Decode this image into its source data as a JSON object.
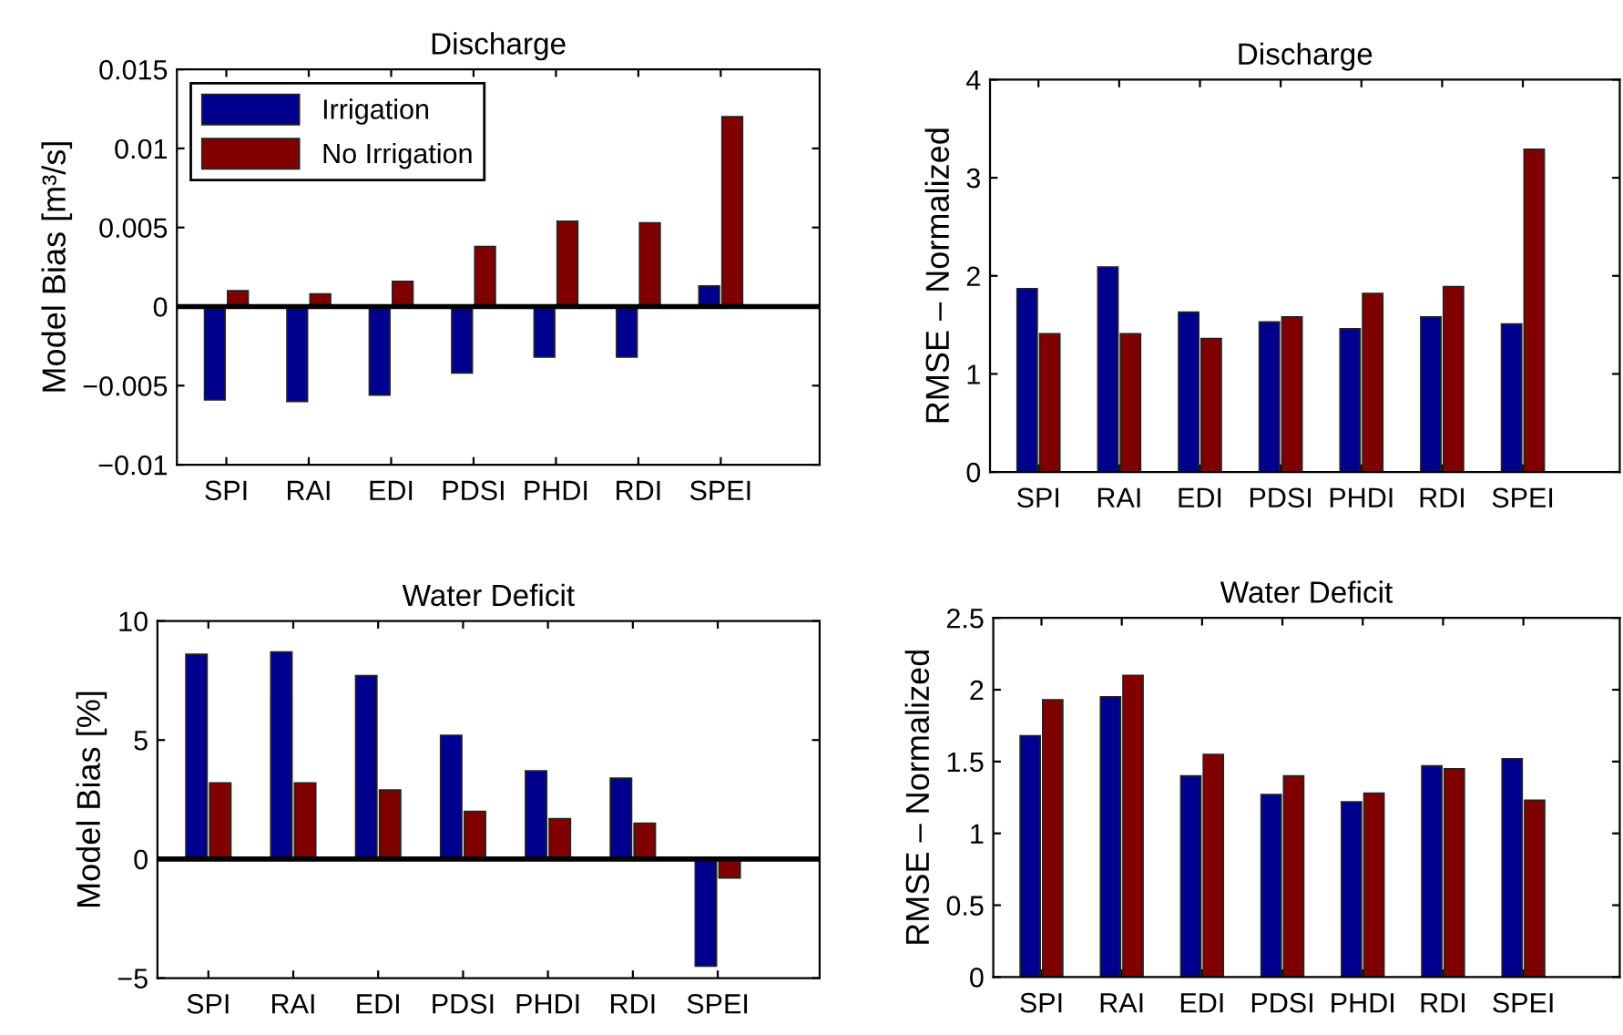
{
  "chart_data": [
    {
      "type": "bar",
      "title": "Discharge",
      "ylabel": "Model Bias [m³/s]",
      "categories": [
        "SPI",
        "RAI",
        "EDI",
        "PDSI",
        "PHDI",
        "RDI",
        "SPEI"
      ],
      "ylim": [
        -0.01,
        0.015
      ],
      "yticks": [
        {
          "value": -0.01,
          "label": "−0.01"
        },
        {
          "value": -0.005,
          "label": "−0.005"
        },
        0,
        0.005,
        0.01,
        0.015
      ],
      "legend": "top left",
      "grid": false,
      "ref_lines": [
        {
          "axis": "y",
          "value": 0,
          "color": "#000000"
        }
      ],
      "series": [
        {
          "name": "Irrigation",
          "color": "#00008f",
          "values": [
            -0.0059,
            -0.006,
            -0.0056,
            -0.0042,
            -0.0032,
            -0.0032,
            0.0013
          ]
        },
        {
          "name": "No Irrigation",
          "color": "#800000",
          "values": [
            0.001,
            0.0008,
            0.0016,
            0.0038,
            0.0054,
            0.0053,
            0.012
          ]
        }
      ]
    },
    {
      "type": "bar",
      "title": "Discharge",
      "ylabel": "RMSE – Normalized",
      "categories": [
        "SPI",
        "RAI",
        "EDI",
        "PDSI",
        "PHDI",
        "RDI",
        "SPEI"
      ],
      "ylim": [
        0,
        4
      ],
      "yticks": [
        0,
        1,
        2,
        3,
        4
      ],
      "grid": false,
      "series": [
        {
          "color": "#00008f",
          "values": [
            1.87,
            2.09,
            1.63,
            1.53,
            1.46,
            1.58,
            1.51
          ]
        },
        {
          "color": "#800000",
          "values": [
            1.41,
            1.41,
            1.36,
            1.58,
            1.82,
            1.89,
            3.29
          ]
        }
      ]
    },
    {
      "type": "bar",
      "title": "Water Deficit",
      "ylabel": "Model Bias [%]",
      "categories": [
        "SPI",
        "RAI",
        "EDI",
        "PDSI",
        "PHDI",
        "RDI",
        "SPEI"
      ],
      "ylim": [
        -5,
        10
      ],
      "yticks": [
        {
          "value": -5,
          "label": "−5"
        },
        0,
        5,
        10
      ],
      "grid": false,
      "ref_lines": [
        {
          "axis": "y",
          "value": 0,
          "color": "#000000"
        }
      ],
      "series": [
        {
          "color": "#00008f",
          "values": [
            8.6,
            8.7,
            7.7,
            5.2,
            3.7,
            3.4,
            -4.5
          ]
        },
        {
          "color": "#800000",
          "values": [
            3.2,
            3.2,
            2.9,
            2.0,
            1.7,
            1.5,
            -0.8
          ]
        }
      ]
    },
    {
      "type": "bar",
      "title": "Water Deficit",
      "ylabel": "RMSE – Normalized",
      "categories": [
        "SPI",
        "RAI",
        "EDI",
        "PDSI",
        "PHDI",
        "RDI",
        "SPEI"
      ],
      "ylim": [
        0,
        2.5
      ],
      "yticks": [
        0,
        0.5,
        1,
        1.5,
        2,
        2.5
      ],
      "grid": false,
      "series": [
        {
          "color": "#00008f",
          "values": [
            1.68,
            1.95,
            1.4,
            1.27,
            1.22,
            1.47,
            1.52
          ]
        },
        {
          "color": "#800000",
          "values": [
            1.93,
            2.1,
            1.55,
            1.4,
            1.28,
            1.45,
            1.23
          ]
        }
      ]
    }
  ]
}
